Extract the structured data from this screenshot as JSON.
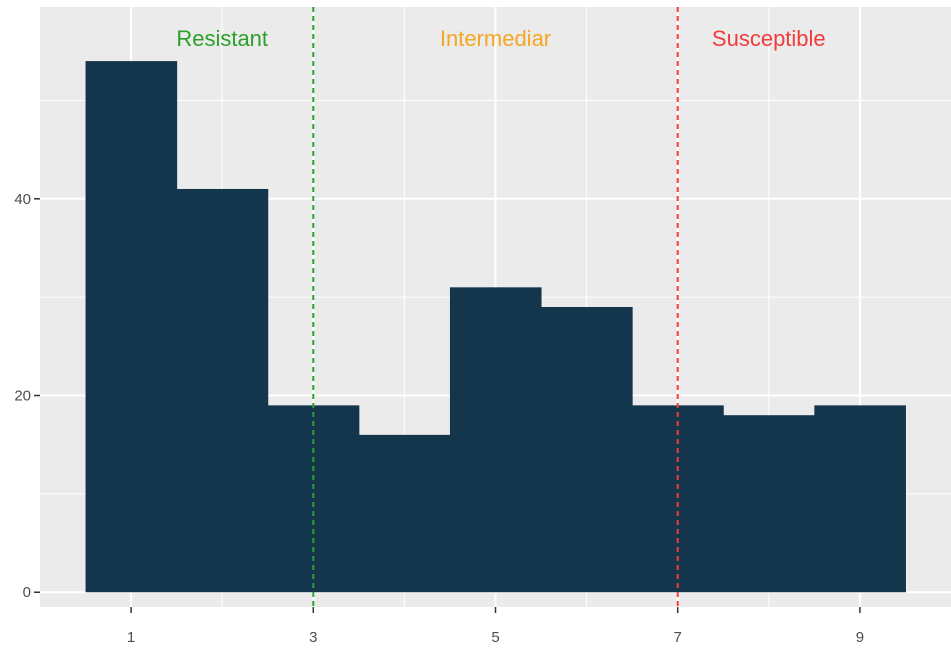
{
  "chart_data": {
    "type": "bar",
    "title": "",
    "xlabel": "",
    "ylabel": "",
    "x": [
      1,
      2,
      3,
      4,
      5,
      6,
      7,
      8,
      9
    ],
    "values": [
      54,
      41,
      19,
      16,
      31,
      29,
      19,
      18,
      19
    ],
    "xlim": [
      0.0,
      10.0
    ],
    "ylim": [
      -1.5,
      59.5
    ],
    "x_ticks": [
      "1",
      "3",
      "5",
      "7",
      "9"
    ],
    "y_ticks": [
      "0",
      "20",
      "40"
    ],
    "grid": true,
    "bar_color": "#14364d",
    "panel_background": "#ebebeb",
    "thresholds": [
      {
        "x": 3,
        "color": "#2ca02c",
        "style": "dashed"
      },
      {
        "x": 7,
        "color": "#f23b3b",
        "style": "dashed"
      }
    ],
    "region_labels": [
      {
        "text": "Resistant",
        "x": 2,
        "color": "#2ca02c"
      },
      {
        "text": "Intermediar",
        "x": 5,
        "color": "#f5a623"
      },
      {
        "text": "Susceptible",
        "x": 8,
        "color": "#f23b3b"
      }
    ]
  }
}
